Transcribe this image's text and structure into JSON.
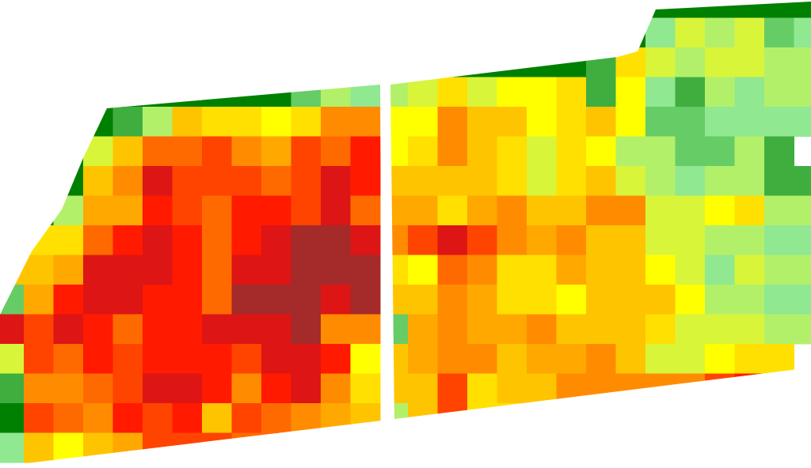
{
  "map": {
    "palette": {
      "a": "#008000",
      "b": "#3fae3f",
      "c": "#66cc66",
      "d": "#90e890",
      "e": "#b3f06a",
      "f": "#d8f53a",
      "y": "#ffff00",
      "g": "#ffe000",
      "h": "#ffc400",
      "i": "#ffa800",
      "j": "#ff8c00",
      "k": "#ff6a00",
      "l": "#ff4400",
      "m": "#ff1a00",
      "n": "#dd1515",
      "o": "#a52a2a"
    },
    "fields": [
      {
        "rows": [
          "aaaaaaaaaacedh",
          "aaaabehggygjj",
          "aaafhkkljilkm",
          "aaahjnlllklnm",
          "aaeiimlkmmlnk",
          "fggkmnmkmnoon",
          "hhinnnmknnooo",
          "cimnnmmkooono",
          "nlnmkmmnnnojj",
          "flkmlmmmlnnmy",
          "bjjklnnmjmnjg",
          "alkjmlmhlkjih",
          "dhyhilllkkjih"
        ]
      },
      {
        "rows": [
          "aaaaaaaaaaaaaaa",
          "aaaaaaaaadfefcd",
          "aaaaaaabgfeffee",
          "efgfyygbydbedee",
          "yyjhhyghyccdddd",
          "ygjhgfgyeecceb",
          "hhhhgfghfedeebb",
          "iigijhhjjffygee",
          "jlnljijhhffeedd",
          "gykjggihhyfdfee",
          "hhjiggyhhhyeedd",
          "cijiijhhhgfffee",
          "hijjhiijhffygg",
          "hhlghhjjjjjlmmm",
          "ehlgghijjjjjjjj"
        ]
      }
    ]
  }
}
